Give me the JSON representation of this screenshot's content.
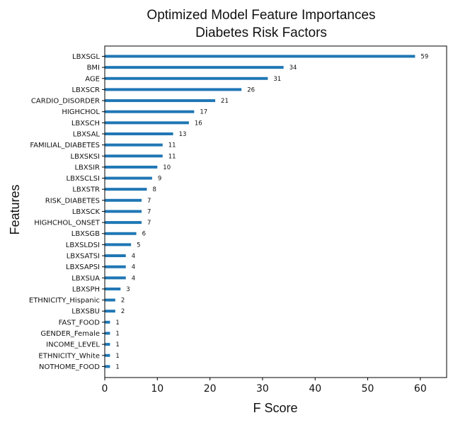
{
  "chart_data": {
    "type": "bar",
    "orientation": "horizontal",
    "title": "Optimized Model Feature Importances",
    "subtitle": "Diabetes Risk Factors",
    "xlabel": "F Score",
    "ylabel": "Features",
    "xlim": [
      0,
      65
    ],
    "xticks": [
      0,
      10,
      20,
      30,
      40,
      50,
      60
    ],
    "grid": false,
    "bar_color": "#1f77b4",
    "categories": [
      "LBXSGL",
      "BMI",
      "AGE",
      "LBXSCR",
      "CARDIO_DISORDER",
      "HIGHCHOL",
      "LBXSCH",
      "LBXSAL",
      "FAMILIAL_DIABETES",
      "LBXSKSI",
      "LBXSIR",
      "LBXSCLSI",
      "LBXSTR",
      "RISK_DIABETES",
      "LBXSCK",
      "HIGHCHOL_ONSET",
      "LBXSGB",
      "LBXSLDSI",
      "LBXSATSI",
      "LBXSAPSI",
      "LBXSUA",
      "LBXSPH",
      "ETHNICITY_Hispanic",
      "LBXSBU",
      "FAST_FOOD",
      "GENDER_Female",
      "INCOME_LEVEL",
      "ETHNICITY_White",
      "NOTHOME_FOOD"
    ],
    "values": [
      59,
      34,
      31,
      26,
      21,
      17,
      16,
      13,
      11,
      11,
      10,
      9,
      8,
      7,
      7,
      7,
      6,
      5,
      4,
      4,
      4,
      3,
      2,
      2,
      1,
      1,
      1,
      1,
      1
    ]
  }
}
